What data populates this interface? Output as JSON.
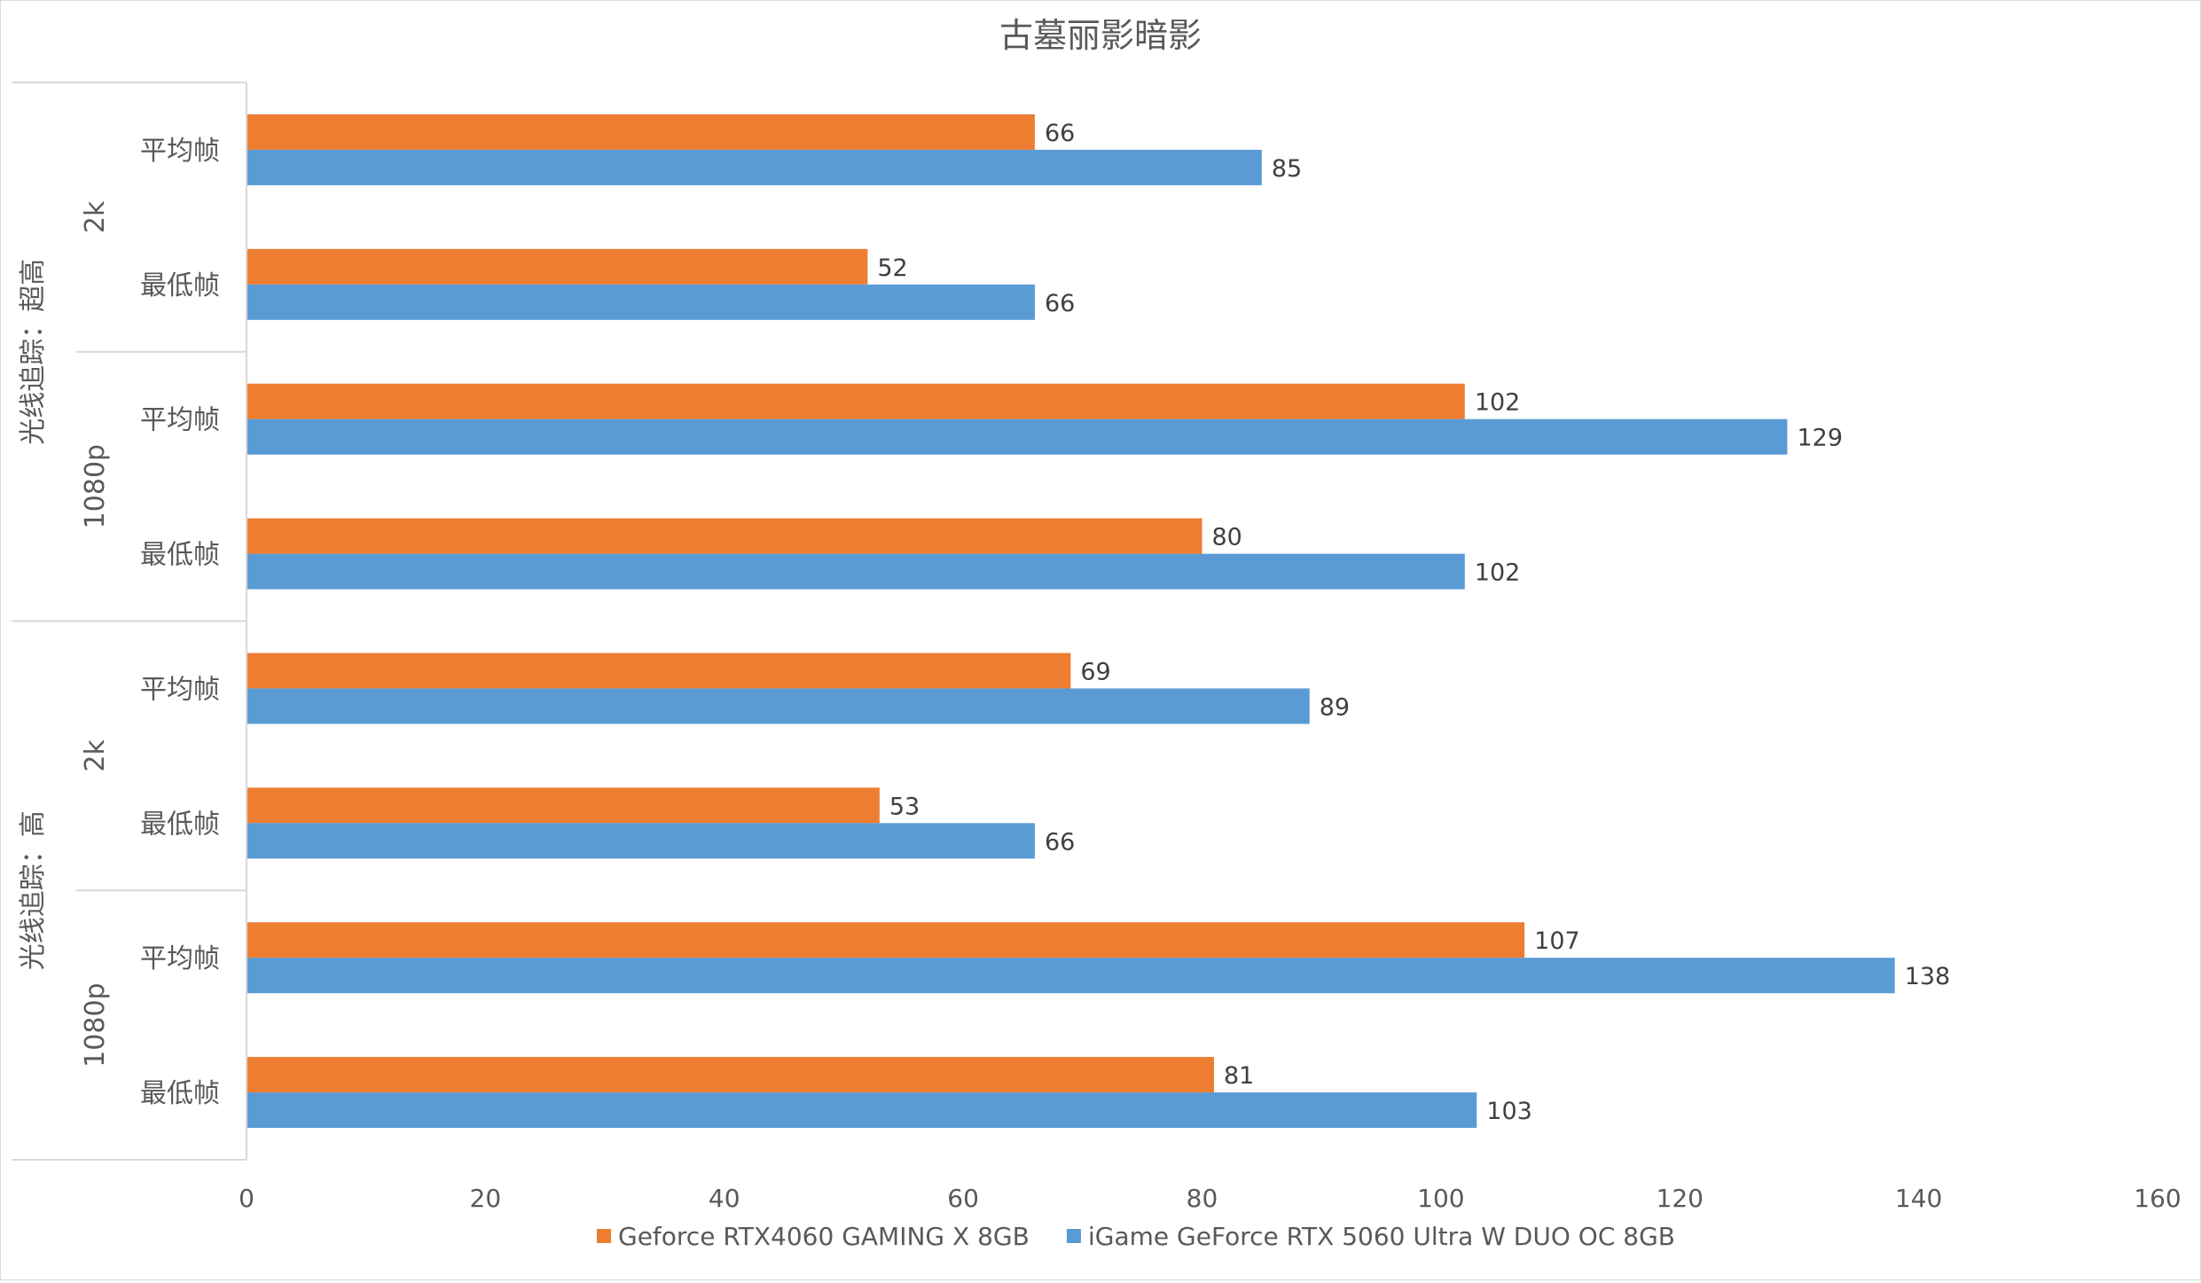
{
  "chart_data": {
    "type": "bar",
    "orientation": "horizontal",
    "title": "古墓丽影暗影",
    "xlabel": "",
    "ylabel": "",
    "xlim": [
      0,
      160
    ],
    "x_ticks": [
      "0",
      "20",
      "40",
      "60",
      "80",
      "100",
      "120",
      "140",
      "160"
    ],
    "grid": false,
    "legend_position": "bottom",
    "groups": [
      {
        "label": "光线追踪：超高",
        "subgroups": [
          {
            "label": "2k",
            "categories": [
              "平均帧",
              "最低帧"
            ]
          },
          {
            "label": "1080p",
            "categories": [
              "平均帧",
              "最低帧"
            ]
          }
        ]
      },
      {
        "label": "光线追踪：高",
        "subgroups": [
          {
            "label": "2k",
            "categories": [
              "平均帧",
              "最低帧"
            ]
          },
          {
            "label": "1080p",
            "categories": [
              "平均帧",
              "最低帧"
            ]
          }
        ]
      }
    ],
    "series": [
      {
        "name": "Geforce RTX4060 GAMING X 8GB",
        "color": "#ED7D31",
        "values": [
          66,
          52,
          102,
          80,
          69,
          53,
          107,
          81
        ]
      },
      {
        "name": "iGame GeForce RTX 5060 Ultra W DUO OC 8GB",
        "color": "#5B9BD5",
        "values": [
          85,
          66,
          129,
          102,
          89,
          66,
          138,
          103
        ]
      }
    ]
  }
}
